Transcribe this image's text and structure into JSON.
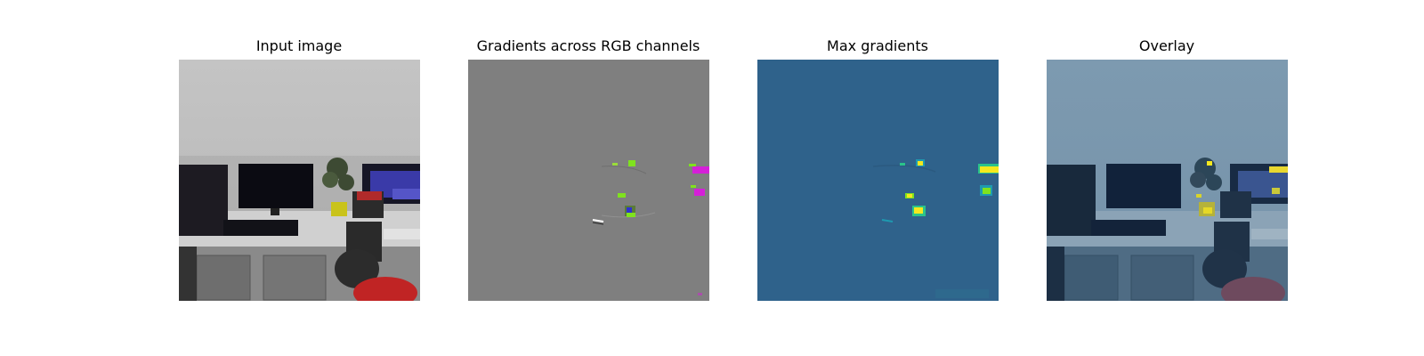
{
  "figure": {
    "panels": [
      {
        "title": "Input image"
      },
      {
        "title": "Gradients across RGB channels"
      },
      {
        "title": "Max gradients"
      },
      {
        "title": "Overlay"
      }
    ]
  },
  "colors": {
    "gradient_background": "#7f7f7f",
    "max_gradient_background": "#2f628b",
    "highlight_yellow": "#f5e81e",
    "highlight_green": "#7fe21e",
    "highlight_magenta": "#d51fd8",
    "overlay_tint": "#3a6a94"
  }
}
